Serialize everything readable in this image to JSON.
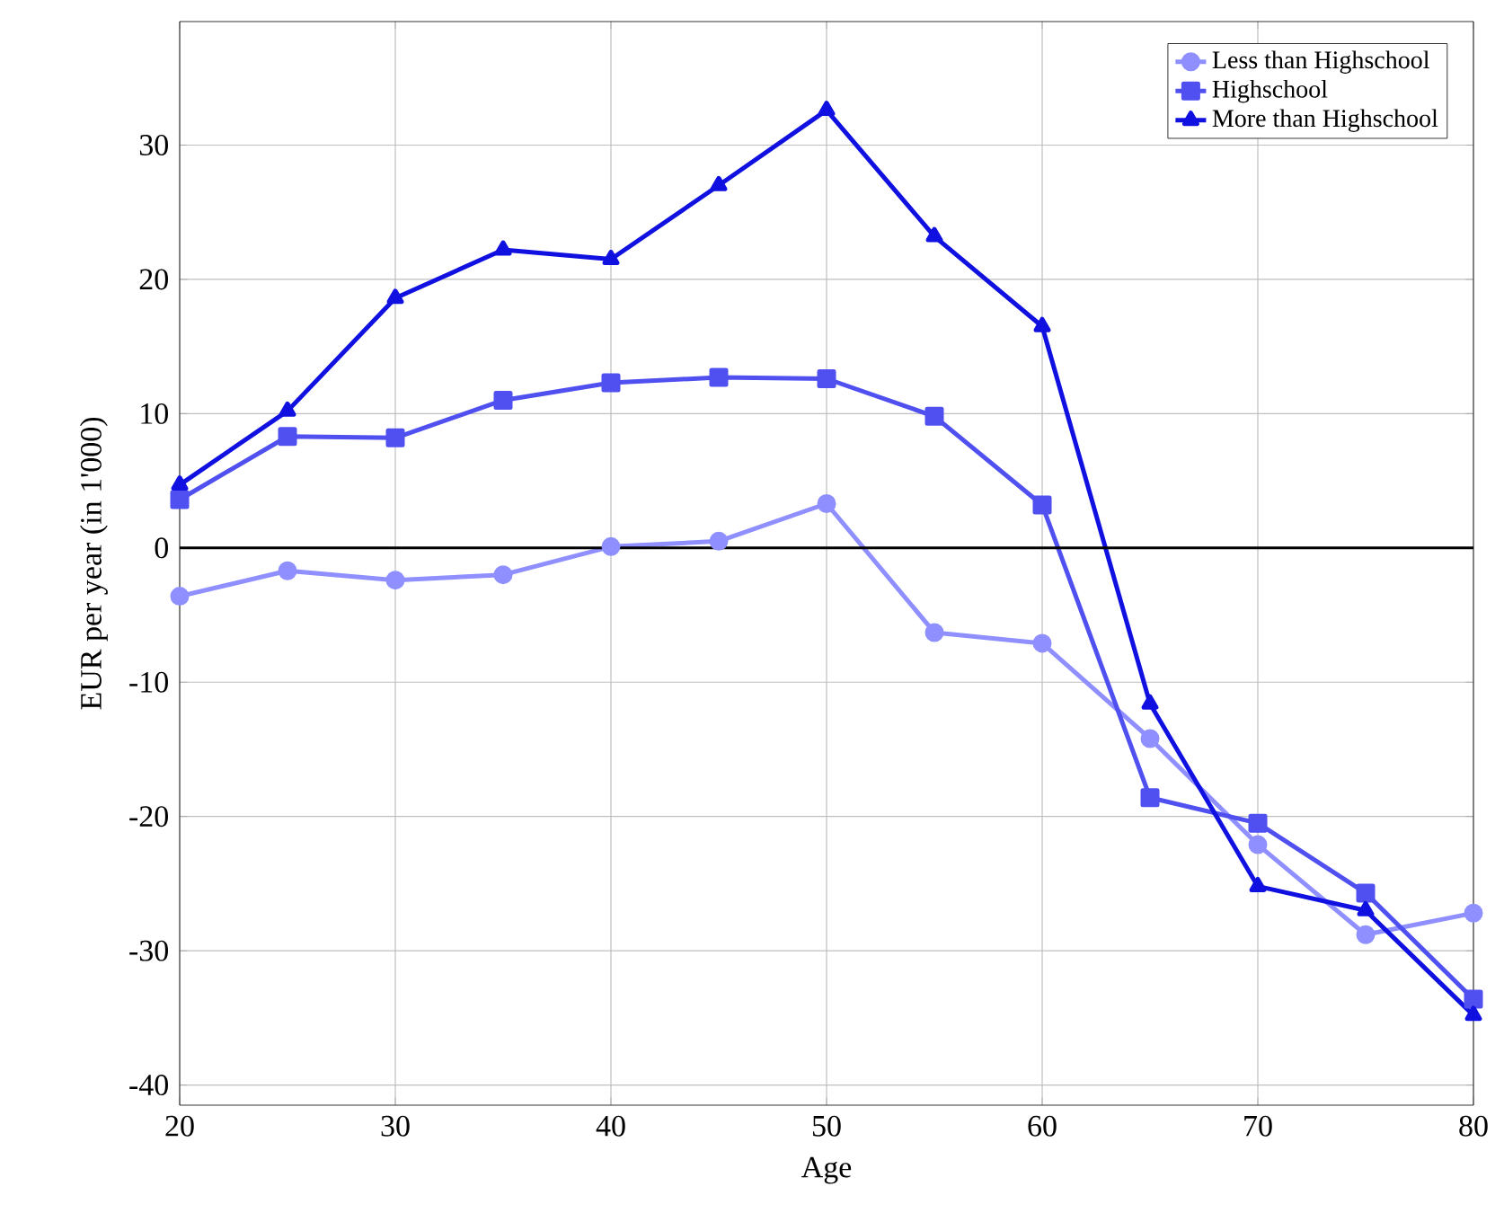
{
  "chart_data": {
    "type": "line",
    "xlabel": "Age",
    "ylabel": "EUR per year (in 1'000)",
    "x": [
      20,
      25,
      30,
      35,
      40,
      45,
      50,
      55,
      60,
      65,
      70,
      75,
      80
    ],
    "series": [
      {
        "name": "Less than Highschool",
        "color": "#8f8fff",
        "marker": "circle",
        "values": [
          -3.6,
          -1.7,
          -2.4,
          -2.0,
          0.1,
          0.5,
          3.3,
          -6.3,
          -7.1,
          -14.2,
          -22.1,
          -28.8,
          -27.2
        ]
      },
      {
        "name": "Highschool",
        "color": "#5050f0",
        "marker": "square",
        "values": [
          3.6,
          8.3,
          8.2,
          11.0,
          12.3,
          12.7,
          12.6,
          9.8,
          3.2,
          -18.6,
          -20.5,
          -25.7,
          -33.6
        ]
      },
      {
        "name": "More than Highschool",
        "color": "#1010e0",
        "marker": "triangle",
        "values": [
          4.7,
          10.2,
          18.6,
          22.2,
          21.5,
          27.0,
          32.6,
          23.2,
          16.5,
          -11.6,
          -25.2,
          -27.0,
          -34.8
        ]
      }
    ],
    "xlim": [
      20,
      80
    ],
    "xticks": [
      20,
      30,
      40,
      50,
      60,
      70,
      80
    ],
    "ylim": [
      -41.5,
      39.2
    ],
    "yticks": [
      -40,
      -30,
      -20,
      -10,
      0,
      10,
      20,
      30
    ],
    "ref_lines": [
      {
        "axis": "y",
        "value": 0,
        "color": "#000000"
      }
    ],
    "grid": true,
    "legend": "top right",
    "line_style": "solid"
  }
}
